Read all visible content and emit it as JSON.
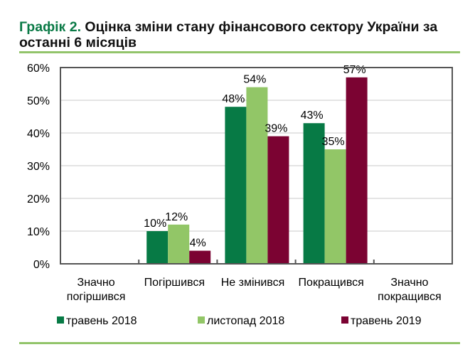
{
  "title": {
    "prefix": "Графік 2.",
    "text": "Оцінка зміни стану фінансового сектору України за останні 6 місяців"
  },
  "chart_data": {
    "type": "bar",
    "categories": [
      [
        "Значно",
        "погіршився"
      ],
      [
        "Погіршився"
      ],
      [
        "Не змінився"
      ],
      [
        "Покращився"
      ],
      [
        "Значно",
        "покращився"
      ]
    ],
    "series": [
      {
        "name": "травень 2018",
        "color": "#077a45",
        "values": [
          null,
          10,
          48,
          43,
          null
        ],
        "labels": [
          "",
          "10%",
          "48%",
          "43%",
          ""
        ]
      },
      {
        "name": "листопад 2018",
        "color": "#92c667",
        "values": [
          null,
          12,
          54,
          35,
          null
        ],
        "labels": [
          "",
          "12%",
          "54%",
          "35%",
          ""
        ]
      },
      {
        "name": "травень 2019",
        "color": "#7b0332",
        "values": [
          null,
          4,
          39,
          57,
          null
        ],
        "labels": [
          "",
          "4%",
          "39%",
          "57%",
          ""
        ]
      }
    ],
    "yticks": [
      "0%",
      "10%",
      "20%",
      "30%",
      "40%",
      "50%",
      "60%"
    ],
    "ylim": [
      0,
      60
    ],
    "grid": true,
    "legend": "bottom"
  }
}
